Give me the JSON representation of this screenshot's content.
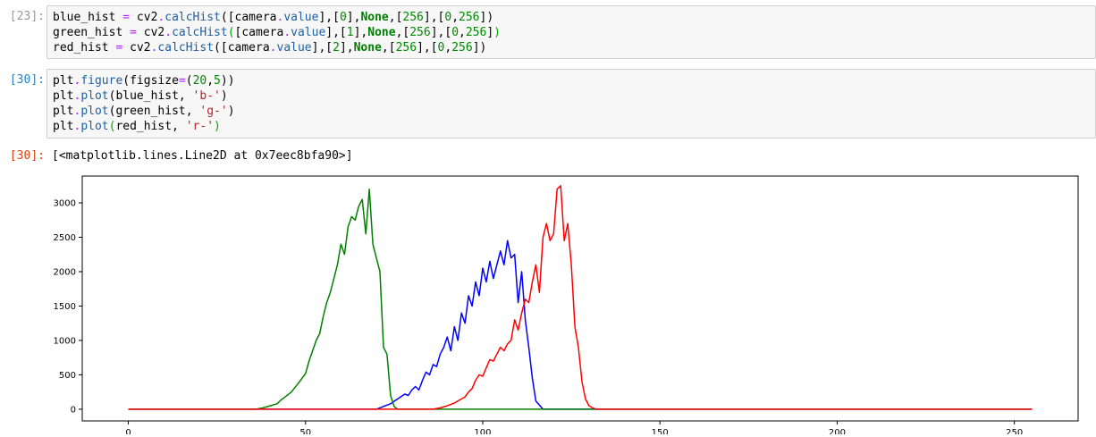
{
  "cells": [
    {
      "prompt": "[23]:",
      "lines": [
        "blue_hist = cv2.calcHist([camera.value],[0],None,[256],[0,256])",
        "green_hist = cv2.calcHist([camera.value],[1],None,[256],[0,256])",
        "red_hist = cv2.calcHist([camera.value],[2],None,[256],[0,256])"
      ]
    },
    {
      "prompt": "[30]:",
      "lines": [
        "plt.figure(figsize=(20,5))",
        "plt.plot(blue_hist, 'b-')",
        "plt.plot(green_hist, 'g-')",
        "plt.plot(red_hist, 'r-')"
      ]
    }
  ],
  "output": {
    "prompt": "[30]:",
    "text": "[<matplotlib.lines.Line2D at 0x7eec8bfa90>]"
  },
  "chart_data": {
    "type": "line",
    "title": "",
    "xlabel": "",
    "ylabel": "",
    "xlim": [
      -13,
      268
    ],
    "ylim": [
      -170,
      3390
    ],
    "xticks": [
      0,
      50,
      100,
      150,
      200,
      250
    ],
    "yticks": [
      0,
      500,
      1000,
      1500,
      2000,
      2500,
      3000
    ],
    "grid": false,
    "legend": "none",
    "series": [
      {
        "color": "#0000ff",
        "points": [
          [
            0,
            0
          ],
          [
            70,
            0
          ],
          [
            72,
            40
          ],
          [
            74,
            80
          ],
          [
            76,
            150
          ],
          [
            78,
            220
          ],
          [
            79,
            200
          ],
          [
            80,
            280
          ],
          [
            81,
            330
          ],
          [
            82,
            280
          ],
          [
            83,
            420
          ],
          [
            84,
            540
          ],
          [
            85,
            500
          ],
          [
            86,
            650
          ],
          [
            87,
            620
          ],
          [
            88,
            800
          ],
          [
            89,
            900
          ],
          [
            90,
            1050
          ],
          [
            91,
            850
          ],
          [
            92,
            1200
          ],
          [
            93,
            1000
          ],
          [
            94,
            1400
          ],
          [
            95,
            1250
          ],
          [
            96,
            1650
          ],
          [
            97,
            1500
          ],
          [
            98,
            1850
          ],
          [
            99,
            1650
          ],
          [
            100,
            2050
          ],
          [
            101,
            1850
          ],
          [
            102,
            2150
          ],
          [
            103,
            1900
          ],
          [
            104,
            2100
          ],
          [
            105,
            2300
          ],
          [
            106,
            2100
          ],
          [
            107,
            2450
          ],
          [
            108,
            2200
          ],
          [
            109,
            2250
          ],
          [
            110,
            1550
          ],
          [
            111,
            2000
          ],
          [
            112,
            1300
          ],
          [
            113,
            900
          ],
          [
            114,
            450
          ],
          [
            115,
            120
          ],
          [
            116,
            60
          ],
          [
            117,
            0
          ],
          [
            255,
            0
          ]
        ]
      },
      {
        "color": "#008000",
        "points": [
          [
            0,
            0
          ],
          [
            36,
            0
          ],
          [
            38,
            20
          ],
          [
            40,
            50
          ],
          [
            42,
            80
          ],
          [
            43,
            130
          ],
          [
            44,
            170
          ],
          [
            46,
            250
          ],
          [
            48,
            380
          ],
          [
            50,
            520
          ],
          [
            51,
            700
          ],
          [
            52,
            850
          ],
          [
            53,
            1000
          ],
          [
            54,
            1100
          ],
          [
            55,
            1350
          ],
          [
            56,
            1550
          ],
          [
            57,
            1700
          ],
          [
            58,
            1900
          ],
          [
            59,
            2100
          ],
          [
            60,
            2400
          ],
          [
            61,
            2250
          ],
          [
            62,
            2650
          ],
          [
            63,
            2800
          ],
          [
            64,
            2750
          ],
          [
            65,
            2950
          ],
          [
            66,
            3050
          ],
          [
            67,
            2550
          ],
          [
            68,
            3200
          ],
          [
            69,
            2400
          ],
          [
            70,
            2200
          ],
          [
            71,
            2000
          ],
          [
            72,
            900
          ],
          [
            73,
            800
          ],
          [
            74,
            200
          ],
          [
            75,
            40
          ],
          [
            76,
            0
          ],
          [
            255,
            0
          ]
        ]
      },
      {
        "color": "#ff0000",
        "points": [
          [
            0,
            0
          ],
          [
            86,
            0
          ],
          [
            88,
            20
          ],
          [
            90,
            50
          ],
          [
            92,
            90
          ],
          [
            94,
            150
          ],
          [
            95,
            180
          ],
          [
            96,
            250
          ],
          [
            97,
            300
          ],
          [
            98,
            420
          ],
          [
            99,
            500
          ],
          [
            100,
            480
          ],
          [
            101,
            600
          ],
          [
            102,
            720
          ],
          [
            103,
            700
          ],
          [
            104,
            800
          ],
          [
            105,
            900
          ],
          [
            106,
            850
          ],
          [
            107,
            950
          ],
          [
            108,
            1000
          ],
          [
            109,
            1300
          ],
          [
            110,
            1150
          ],
          [
            111,
            1400
          ],
          [
            112,
            1600
          ],
          [
            113,
            1550
          ],
          [
            114,
            1850
          ],
          [
            115,
            2100
          ],
          [
            116,
            1700
          ],
          [
            117,
            2500
          ],
          [
            118,
            2700
          ],
          [
            119,
            2450
          ],
          [
            120,
            2550
          ],
          [
            121,
            3200
          ],
          [
            122,
            3250
          ],
          [
            123,
            2450
          ],
          [
            124,
            2700
          ],
          [
            125,
            2100
          ],
          [
            126,
            1200
          ],
          [
            127,
            900
          ],
          [
            128,
            400
          ],
          [
            129,
            150
          ],
          [
            130,
            50
          ],
          [
            131,
            20
          ],
          [
            132,
            0
          ],
          [
            255,
            0
          ]
        ]
      }
    ]
  }
}
